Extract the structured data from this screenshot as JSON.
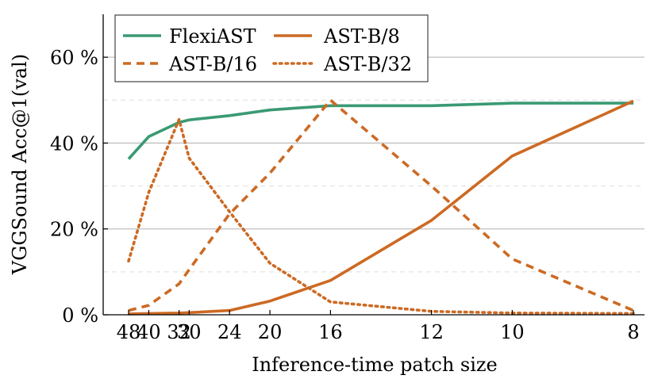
{
  "chart_data": {
    "type": "line",
    "xlabel": "Inference-time patch size",
    "ylabel": "VGGSound Acc@1(val)",
    "xticks": [
      "48",
      "40",
      "32",
      "30",
      "24",
      "20",
      "16",
      "12",
      "10",
      "8"
    ],
    "yticks": [
      "0 %",
      "20 %",
      "40 %",
      "60 %"
    ],
    "ylim": [
      0,
      70
    ],
    "x_axis": "reciprocal patch size (positions proportional to 1/patch)",
    "grid": "horizontal, dashed minor",
    "legend_position": "top-left",
    "series": [
      {
        "name": "FlexiAST",
        "style": "solid",
        "color": "#3a9a73",
        "x": [
          48,
          40,
          32,
          30,
          24,
          20,
          16,
          12,
          10,
          8
        ],
        "values": [
          36.3,
          41.5,
          44.8,
          45.4,
          46.4,
          47.7,
          48.7,
          48.7,
          49.3,
          49.3
        ]
      },
      {
        "name": "AST-B/8",
        "style": "solid",
        "color": "#cc6a24",
        "x": [
          48,
          40,
          32,
          30,
          24,
          20,
          16,
          12,
          10,
          8
        ],
        "values": [
          0.2,
          0.3,
          0.4,
          0.5,
          1.0,
          3.2,
          8.0,
          22.0,
          37.0,
          49.8
        ]
      },
      {
        "name": "AST-B/16",
        "style": "dashed",
        "color": "#cc6a24",
        "x": [
          48,
          40,
          32,
          30,
          24,
          20,
          16,
          12,
          10,
          8
        ],
        "values": [
          1.0,
          2.2,
          7.2,
          10.5,
          23.5,
          33.0,
          50.0,
          30.0,
          13.0,
          1.0
        ]
      },
      {
        "name": "AST-B/32",
        "style": "dotted",
        "color": "#cc6a24",
        "x": [
          48,
          40,
          32,
          30,
          24,
          20,
          16,
          12,
          10,
          8
        ],
        "values": [
          12.5,
          28.5,
          45.5,
          36.5,
          24.0,
          12.0,
          3.0,
          0.8,
          0.4,
          0.3
        ]
      }
    ]
  }
}
